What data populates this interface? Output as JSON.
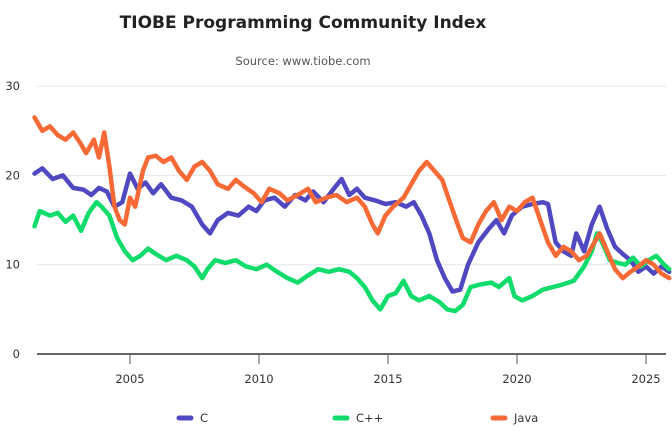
{
  "chart_data": {
    "type": "line",
    "title": "TIOBE Programming Community Index",
    "subtitle": "Source: www.tiobe.com",
    "xlabel": "",
    "ylabel": "",
    "xlim": [
      2001.3,
      2025.9
    ],
    "ylim": [
      0,
      30
    ],
    "x_ticks": [
      2005,
      2010,
      2015,
      2020,
      2025
    ],
    "x_tick_labels": [
      "2005",
      "2010",
      "2015",
      "2020",
      "2025"
    ],
    "y_ticks": [
      0,
      10,
      20,
      30
    ],
    "y_tick_labels": [
      "0",
      "10",
      "20",
      "30"
    ],
    "grid": "horizontal",
    "legend": "bottom-center",
    "series": [
      {
        "name": "C",
        "color": "#5048c0",
        "points": [
          [
            2001.3,
            20.2
          ],
          [
            2001.6,
            20.8
          ],
          [
            2002.0,
            19.6
          ],
          [
            2002.4,
            20.0
          ],
          [
            2002.8,
            18.6
          ],
          [
            2003.2,
            18.4
          ],
          [
            2003.5,
            17.8
          ],
          [
            2003.8,
            18.6
          ],
          [
            2004.1,
            18.2
          ],
          [
            2004.4,
            16.5
          ],
          [
            2004.7,
            17.0
          ],
          [
            2005.0,
            20.2
          ],
          [
            2005.3,
            18.5
          ],
          [
            2005.6,
            19.2
          ],
          [
            2005.9,
            18.0
          ],
          [
            2006.2,
            19.0
          ],
          [
            2006.6,
            17.5
          ],
          [
            2007.0,
            17.2
          ],
          [
            2007.4,
            16.5
          ],
          [
            2007.8,
            14.5
          ],
          [
            2008.1,
            13.5
          ],
          [
            2008.4,
            15.0
          ],
          [
            2008.8,
            15.8
          ],
          [
            2009.2,
            15.5
          ],
          [
            2009.6,
            16.5
          ],
          [
            2009.9,
            16.0
          ],
          [
            2010.2,
            17.2
          ],
          [
            2010.6,
            17.5
          ],
          [
            2011.0,
            16.5
          ],
          [
            2011.4,
            17.8
          ],
          [
            2011.8,
            17.2
          ],
          [
            2012.1,
            18.2
          ],
          [
            2012.5,
            17.0
          ],
          [
            2012.9,
            18.5
          ],
          [
            2013.2,
            19.6
          ],
          [
            2013.5,
            17.8
          ],
          [
            2013.8,
            18.5
          ],
          [
            2014.1,
            17.5
          ],
          [
            2014.5,
            17.2
          ],
          [
            2014.9,
            16.8
          ],
          [
            2015.3,
            17.0
          ],
          [
            2015.7,
            16.5
          ],
          [
            2016.0,
            17.0
          ],
          [
            2016.3,
            15.5
          ],
          [
            2016.6,
            13.5
          ],
          [
            2016.9,
            10.5
          ],
          [
            2017.2,
            8.5
          ],
          [
            2017.5,
            7.0
          ],
          [
            2017.8,
            7.2
          ],
          [
            2018.1,
            10.0
          ],
          [
            2018.5,
            12.5
          ],
          [
            2018.9,
            14.0
          ],
          [
            2019.2,
            15.0
          ],
          [
            2019.5,
            13.5
          ],
          [
            2019.8,
            15.5
          ],
          [
            2020.2,
            16.5
          ],
          [
            2020.6,
            16.8
          ],
          [
            2021.0,
            17.0
          ],
          [
            2021.2,
            16.8
          ],
          [
            2021.5,
            12.5
          ],
          [
            2021.8,
            11.5
          ],
          [
            2022.1,
            11.0
          ],
          [
            2022.3,
            13.5
          ],
          [
            2022.6,
            11.5
          ],
          [
            2022.9,
            14.5
          ],
          [
            2023.2,
            16.5
          ],
          [
            2023.5,
            14.0
          ],
          [
            2023.8,
            12.0
          ],
          [
            2024.1,
            11.2
          ],
          [
            2024.4,
            10.5
          ],
          [
            2024.7,
            9.2
          ],
          [
            2025.0,
            9.8
          ],
          [
            2025.3,
            9.0
          ],
          [
            2025.6,
            9.8
          ],
          [
            2025.9,
            9.2
          ]
        ]
      },
      {
        "name": "C++",
        "color": "#0fdc6a",
        "points": [
          [
            2001.3,
            14.3
          ],
          [
            2001.5,
            16.0
          ],
          [
            2001.9,
            15.5
          ],
          [
            2002.2,
            15.8
          ],
          [
            2002.5,
            14.8
          ],
          [
            2002.8,
            15.5
          ],
          [
            2003.1,
            13.8
          ],
          [
            2003.4,
            15.8
          ],
          [
            2003.7,
            17.0
          ],
          [
            2003.9,
            16.5
          ],
          [
            2004.2,
            15.5
          ],
          [
            2004.5,
            13.0
          ],
          [
            2004.8,
            11.5
          ],
          [
            2005.1,
            10.5
          ],
          [
            2005.4,
            11.0
          ],
          [
            2005.7,
            11.8
          ],
          [
            2006.0,
            11.2
          ],
          [
            2006.4,
            10.5
          ],
          [
            2006.8,
            11.0
          ],
          [
            2007.2,
            10.5
          ],
          [
            2007.5,
            9.8
          ],
          [
            2007.8,
            8.5
          ],
          [
            2008.0,
            9.5
          ],
          [
            2008.3,
            10.5
          ],
          [
            2008.7,
            10.2
          ],
          [
            2009.1,
            10.5
          ],
          [
            2009.5,
            9.8
          ],
          [
            2009.9,
            9.5
          ],
          [
            2010.3,
            10.0
          ],
          [
            2010.7,
            9.2
          ],
          [
            2011.1,
            8.5
          ],
          [
            2011.5,
            8.0
          ],
          [
            2011.9,
            8.8
          ],
          [
            2012.3,
            9.5
          ],
          [
            2012.7,
            9.2
          ],
          [
            2013.1,
            9.5
          ],
          [
            2013.5,
            9.2
          ],
          [
            2013.8,
            8.5
          ],
          [
            2014.1,
            7.5
          ],
          [
            2014.4,
            6.0
          ],
          [
            2014.7,
            5.0
          ],
          [
            2015.0,
            6.5
          ],
          [
            2015.3,
            6.8
          ],
          [
            2015.6,
            8.2
          ],
          [
            2015.9,
            6.5
          ],
          [
            2016.2,
            6.0
          ],
          [
            2016.6,
            6.5
          ],
          [
            2017.0,
            5.8
          ],
          [
            2017.3,
            5.0
          ],
          [
            2017.6,
            4.8
          ],
          [
            2017.9,
            5.5
          ],
          [
            2018.2,
            7.5
          ],
          [
            2018.6,
            7.8
          ],
          [
            2019.0,
            8.0
          ],
          [
            2019.3,
            7.5
          ],
          [
            2019.7,
            8.5
          ],
          [
            2019.9,
            6.5
          ],
          [
            2020.2,
            6.0
          ],
          [
            2020.6,
            6.5
          ],
          [
            2021.0,
            7.2
          ],
          [
            2021.4,
            7.5
          ],
          [
            2021.8,
            7.8
          ],
          [
            2022.2,
            8.2
          ],
          [
            2022.6,
            9.8
          ],
          [
            2022.9,
            11.5
          ],
          [
            2023.1,
            13.5
          ],
          [
            2023.3,
            12.5
          ],
          [
            2023.6,
            10.5
          ],
          [
            2023.9,
            10.2
          ],
          [
            2024.2,
            10.0
          ],
          [
            2024.5,
            10.8
          ],
          [
            2024.8,
            9.8
          ],
          [
            2025.1,
            10.5
          ],
          [
            2025.4,
            11.0
          ],
          [
            2025.7,
            10.0
          ],
          [
            2025.9,
            9.5
          ]
        ]
      },
      {
        "name": "Java",
        "color": "#f86a35",
        "points": [
          [
            2001.3,
            26.5
          ],
          [
            2001.6,
            25.0
          ],
          [
            2001.9,
            25.5
          ],
          [
            2002.2,
            24.5
          ],
          [
            2002.5,
            24.0
          ],
          [
            2002.8,
            24.8
          ],
          [
            2003.1,
            23.5
          ],
          [
            2003.3,
            22.5
          ],
          [
            2003.6,
            24.0
          ],
          [
            2003.8,
            22.0
          ],
          [
            2004.0,
            24.8
          ],
          [
            2004.2,
            21.0
          ],
          [
            2004.4,
            16.5
          ],
          [
            2004.6,
            15.0
          ],
          [
            2004.8,
            14.5
          ],
          [
            2005.0,
            17.5
          ],
          [
            2005.2,
            16.5
          ],
          [
            2005.5,
            20.5
          ],
          [
            2005.7,
            22.0
          ],
          [
            2006.0,
            22.2
          ],
          [
            2006.3,
            21.5
          ],
          [
            2006.6,
            22.0
          ],
          [
            2006.9,
            20.5
          ],
          [
            2007.2,
            19.5
          ],
          [
            2007.5,
            21.0
          ],
          [
            2007.8,
            21.5
          ],
          [
            2008.1,
            20.5
          ],
          [
            2008.4,
            19.0
          ],
          [
            2008.8,
            18.5
          ],
          [
            2009.1,
            19.5
          ],
          [
            2009.4,
            18.8
          ],
          [
            2009.8,
            18.0
          ],
          [
            2010.1,
            17.0
          ],
          [
            2010.4,
            18.5
          ],
          [
            2010.8,
            18.0
          ],
          [
            2011.1,
            17.2
          ],
          [
            2011.5,
            17.8
          ],
          [
            2011.9,
            18.5
          ],
          [
            2012.2,
            17.0
          ],
          [
            2012.6,
            17.5
          ],
          [
            2013.0,
            17.8
          ],
          [
            2013.4,
            17.0
          ],
          [
            2013.8,
            17.5
          ],
          [
            2014.1,
            16.5
          ],
          [
            2014.4,
            14.5
          ],
          [
            2014.6,
            13.5
          ],
          [
            2014.9,
            15.5
          ],
          [
            2015.2,
            16.5
          ],
          [
            2015.6,
            17.5
          ],
          [
            2015.9,
            19.0
          ],
          [
            2016.2,
            20.5
          ],
          [
            2016.5,
            21.5
          ],
          [
            2016.8,
            20.5
          ],
          [
            2017.1,
            19.5
          ],
          [
            2017.4,
            17.0
          ],
          [
            2017.7,
            14.5
          ],
          [
            2017.9,
            13.0
          ],
          [
            2018.2,
            12.5
          ],
          [
            2018.5,
            14.5
          ],
          [
            2018.8,
            16.0
          ],
          [
            2019.1,
            17.0
          ],
          [
            2019.4,
            15.0
          ],
          [
            2019.7,
            16.5
          ],
          [
            2020.0,
            16.0
          ],
          [
            2020.3,
            17.0
          ],
          [
            2020.6,
            17.5
          ],
          [
            2020.9,
            15.0
          ],
          [
            2021.2,
            12.5
          ],
          [
            2021.5,
            11.0
          ],
          [
            2021.8,
            12.0
          ],
          [
            2022.1,
            11.5
          ],
          [
            2022.4,
            10.5
          ],
          [
            2022.7,
            11.0
          ],
          [
            2023.0,
            12.5
          ],
          [
            2023.2,
            13.5
          ],
          [
            2023.5,
            11.5
          ],
          [
            2023.8,
            9.5
          ],
          [
            2024.1,
            8.5
          ],
          [
            2024.4,
            9.2
          ],
          [
            2024.7,
            9.8
          ],
          [
            2025.0,
            10.5
          ],
          [
            2025.3,
            10.0
          ],
          [
            2025.6,
            9.0
          ],
          [
            2025.9,
            8.5
          ]
        ]
      }
    ]
  }
}
